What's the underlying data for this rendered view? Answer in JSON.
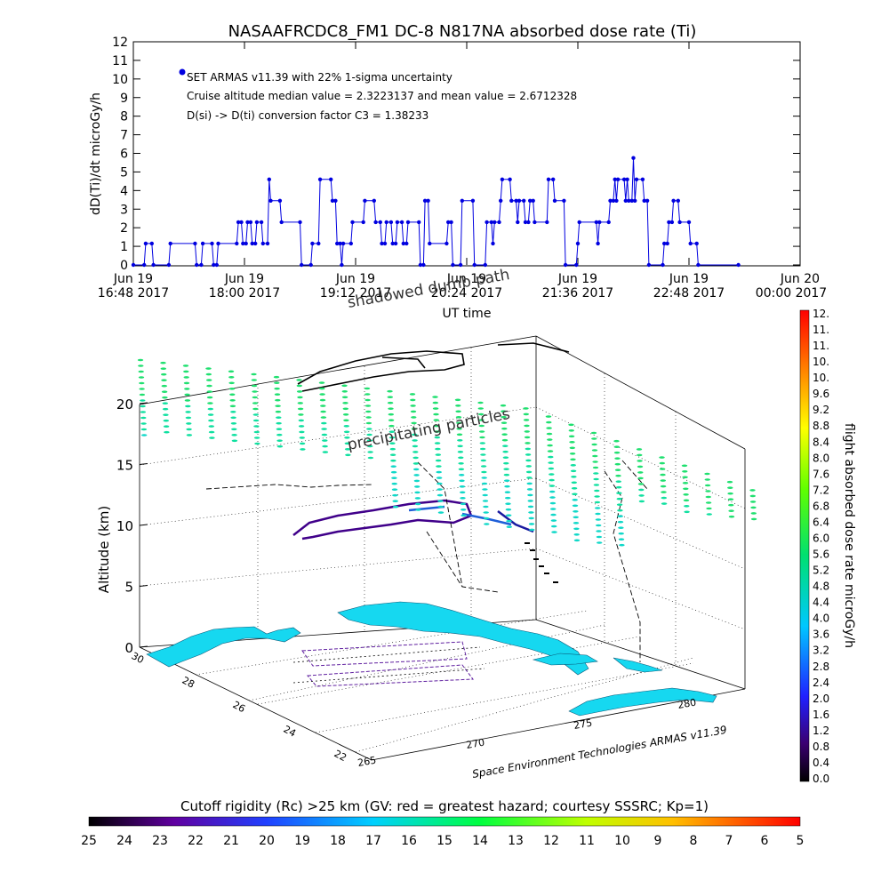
{
  "chart_data": [
    {
      "type": "line",
      "title": "NASAAFRCDC8_FM1 DC-8   N817NA absorbed dose rate (Ti)",
      "ylabel": "dD(Ti)/dt microGy/h",
      "xlabel": "UT time",
      "ylim": [
        0,
        12
      ],
      "yticks": [
        "0",
        "1",
        "2",
        "3",
        "4",
        "5",
        "6",
        "7",
        "8",
        "9",
        "10",
        "11",
        "12"
      ],
      "xticks": [
        {
          "line1": "Jun 19",
          "line2": "16:48 2017"
        },
        {
          "line1": "Jun 19",
          "line2": "18:00 2017"
        },
        {
          "line1": "Jun 19",
          "line2": "19:12 2017"
        },
        {
          "line1": "Jun 19",
          "line2": "20:24 2017"
        },
        {
          "line1": "Jun 19",
          "line2": "21:36 2017"
        },
        {
          "line1": "Jun 19",
          "line2": "22:48 2017"
        },
        {
          "line1": "Jun 20",
          "line2": "00:00 2017"
        }
      ],
      "xrange_minutes": [
        0,
        432
      ],
      "annotations": [
        "SET ARMAS v11.39 with 22% 1-sigma uncertainty",
        "Cruise altitude median value = 2.3223137 and mean value = 2.6712328",
        "D(si) -> D(ti) conversion factor C3 = 1.38233"
      ],
      "series_color": "#0000e0",
      "steps": [
        [
          0,
          0
        ],
        [
          7,
          0
        ],
        [
          8,
          1.15
        ],
        [
          12,
          1.15
        ],
        [
          13,
          0
        ],
        [
          23,
          0
        ],
        [
          24,
          1.15
        ],
        [
          40,
          1.15
        ],
        [
          41,
          0
        ],
        [
          44,
          0
        ],
        [
          45,
          1.15
        ],
        [
          51,
          1.15
        ],
        [
          52,
          0
        ],
        [
          54,
          0
        ],
        [
          55,
          1.15
        ],
        [
          67,
          1.15
        ],
        [
          68,
          2.3
        ],
        [
          70,
          2.3
        ],
        [
          71,
          1.15
        ],
        [
          73,
          1.15
        ],
        [
          74,
          2.3
        ],
        [
          76,
          2.3
        ],
        [
          77,
          1.15
        ],
        [
          79,
          1.15
        ],
        [
          80,
          2.3
        ],
        [
          83,
          2.3
        ],
        [
          84,
          1.15
        ],
        [
          87,
          1.15
        ],
        [
          88,
          4.6
        ],
        [
          89,
          3.45
        ],
        [
          95,
          3.45
        ],
        [
          96,
          2.3
        ],
        [
          108,
          2.3
        ],
        [
          109,
          0
        ],
        [
          115,
          0
        ],
        [
          116,
          1.15
        ],
        [
          120,
          1.15
        ],
        [
          121,
          4.6
        ],
        [
          128,
          4.6
        ],
        [
          129,
          3.45
        ],
        [
          131,
          3.45
        ],
        [
          132,
          1.15
        ],
        [
          134,
          1.15
        ],
        [
          135,
          0
        ],
        [
          136,
          1.15
        ],
        [
          141,
          1.15
        ],
        [
          142,
          2.3
        ],
        [
          149,
          2.3
        ],
        [
          150,
          3.45
        ],
        [
          156,
          3.45
        ],
        [
          157,
          2.3
        ],
        [
          160,
          2.3
        ],
        [
          161,
          1.15
        ],
        [
          163,
          1.15
        ],
        [
          164,
          2.3
        ],
        [
          167,
          2.3
        ],
        [
          168,
          1.15
        ],
        [
          170,
          1.15
        ],
        [
          171,
          2.3
        ],
        [
          174,
          2.3
        ],
        [
          175,
          1.15
        ],
        [
          177,
          1.15
        ],
        [
          178,
          2.3
        ],
        [
          185,
          2.3
        ],
        [
          186,
          0
        ],
        [
          188,
          0
        ],
        [
          189,
          3.45
        ],
        [
          191,
          3.45
        ],
        [
          192,
          1.15
        ],
        [
          203,
          1.15
        ],
        [
          204,
          2.3
        ],
        [
          206,
          2.3
        ],
        [
          207,
          0
        ],
        [
          212,
          0
        ],
        [
          213,
          3.45
        ],
        [
          220,
          3.45
        ],
        [
          221,
          0
        ],
        [
          228,
          0
        ],
        [
          229,
          2.3
        ],
        [
          232,
          2.3
        ],
        [
          233,
          1.15
        ],
        [
          234,
          2.3
        ],
        [
          237,
          2.3
        ],
        [
          238,
          3.45
        ],
        [
          239,
          4.6
        ],
        [
          244,
          4.6
        ],
        [
          245,
          3.45
        ],
        [
          248,
          3.45
        ],
        [
          249,
          2.3
        ],
        [
          250,
          3.45
        ],
        [
          253,
          3.45
        ],
        [
          254,
          2.3
        ],
        [
          256,
          2.3
        ],
        [
          257,
          3.45
        ],
        [
          259,
          3.45
        ],
        [
          260,
          2.3
        ],
        [
          268,
          2.3
        ],
        [
          269,
          4.6
        ],
        [
          272,
          4.6
        ],
        [
          273,
          3.45
        ],
        [
          279,
          3.45
        ],
        [
          280,
          0
        ],
        [
          287,
          0
        ],
        [
          288,
          1.15
        ],
        [
          289,
          2.3
        ],
        [
          300,
          2.3
        ],
        [
          301,
          1.15
        ],
        [
          302,
          2.3
        ],
        [
          308,
          2.3
        ],
        [
          309,
          3.45
        ],
        [
          311,
          3.45
        ],
        [
          312,
          4.6
        ],
        [
          313,
          3.45
        ],
        [
          314,
          4.6
        ],
        [
          318,
          4.6
        ],
        [
          319,
          3.45
        ],
        [
          320,
          4.6
        ],
        [
          321,
          3.45
        ],
        [
          323,
          3.45
        ],
        [
          324,
          5.75
        ],
        [
          325,
          3.45
        ],
        [
          326,
          4.6
        ],
        [
          330,
          4.6
        ],
        [
          331,
          3.45
        ],
        [
          333,
          3.45
        ],
        [
          334,
          0
        ],
        [
          343,
          0
        ],
        [
          344,
          1.15
        ],
        [
          346,
          1.15
        ],
        [
          347,
          2.3
        ],
        [
          349,
          2.3
        ],
        [
          350,
          3.45
        ],
        [
          353,
          3.45
        ],
        [
          354,
          2.3
        ],
        [
          360,
          2.3
        ],
        [
          361,
          1.15
        ],
        [
          365,
          1.15
        ],
        [
          366,
          0
        ],
        [
          392,
          0
        ]
      ]
    },
    {
      "type": "scatter",
      "title": "",
      "xlabel": "",
      "ylabel": "Altitude (km)",
      "zticks": [
        "0",
        "5",
        "10",
        "15",
        "20"
      ],
      "lat_ticks": [
        "30",
        "28",
        "26",
        "24",
        "22"
      ],
      "lon_ticks": [
        "265",
        "270",
        "275",
        "280"
      ],
      "annotations": [
        "shadowed  dumb path",
        "precipitating particles"
      ],
      "credit": "Space Environment Technologies ARMAS v11.39"
    },
    {
      "type": "heatmap",
      "title": "flight absorbed dose rate microGy/h",
      "ticks": [
        "0.0",
        "0.4",
        "0.8",
        "1.2",
        "1.6",
        "2.0",
        "2.4",
        "2.8",
        "3.2",
        "3.6",
        "4.0",
        "4.4",
        "4.8",
        "5.2",
        "5.6",
        "6.0",
        "6.4",
        "6.8",
        "7.2",
        "7.6",
        "8.0",
        "8.4",
        "8.8",
        "9.2",
        "9.6",
        "10.",
        "10.",
        "11.",
        "11.",
        "12."
      ]
    },
    {
      "type": "heatmap",
      "title": "Cutoff rigidity (Rc) >25 km (GV: red = greatest hazard; courtesy SSSRC; Kp=1)",
      "ticks": [
        "25",
        "24",
        "23",
        "22",
        "21",
        "20",
        "19",
        "18",
        "17",
        "16",
        "15",
        "14",
        "13",
        "12",
        "11",
        "10",
        "9",
        "8",
        "7",
        "6",
        "5"
      ]
    }
  ]
}
